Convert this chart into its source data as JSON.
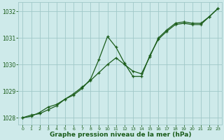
{
  "line1_x": [
    0,
    1,
    2,
    3,
    4,
    5,
    6,
    7,
    8,
    9,
    10,
    11,
    12,
    13,
    14,
    15,
    16,
    17,
    18,
    19,
    20,
    21,
    22,
    23
  ],
  "line1_y": [
    1028.0,
    1028.1,
    1028.15,
    1028.3,
    1028.45,
    1028.7,
    1028.85,
    1029.1,
    1029.45,
    1030.2,
    1031.05,
    1030.65,
    1030.05,
    1029.55,
    1029.55,
    1030.35,
    1030.95,
    1031.25,
    1031.5,
    1031.55,
    1031.5,
    1031.5,
    1031.8,
    1032.1
  ],
  "line2_x": [
    0,
    1,
    2,
    3,
    4,
    5,
    6,
    7,
    8,
    9,
    10,
    11,
    12,
    13,
    14,
    15,
    16,
    17,
    18,
    19,
    20,
    21,
    22,
    23
  ],
  "line2_y": [
    1028.0,
    1028.05,
    1028.2,
    1028.4,
    1028.5,
    1028.7,
    1028.9,
    1029.15,
    1029.4,
    1029.7,
    1030.0,
    1030.25,
    1030.0,
    1029.75,
    1029.65,
    1030.3,
    1031.0,
    1031.3,
    1031.55,
    1031.6,
    1031.55,
    1031.55,
    1031.8,
    1032.1
  ],
  "line_color": "#1a5c1a",
  "bg_color": "#ceeaea",
  "grid_color": "#a0c8c8",
  "xlabel": "Graphe pression niveau de la mer (hPa)",
  "ylim": [
    1027.75,
    1032.35
  ],
  "xlim": [
    -0.5,
    23.5
  ],
  "yticks": [
    1028,
    1029,
    1030,
    1031,
    1032
  ],
  "xticks": [
    0,
    1,
    2,
    3,
    4,
    5,
    6,
    7,
    8,
    9,
    10,
    11,
    12,
    13,
    14,
    15,
    16,
    17,
    18,
    19,
    20,
    21,
    22,
    23
  ],
  "tick_color": "#1a5c1a",
  "label_fontsize": 6.5,
  "tick_fontsize": 5.5
}
